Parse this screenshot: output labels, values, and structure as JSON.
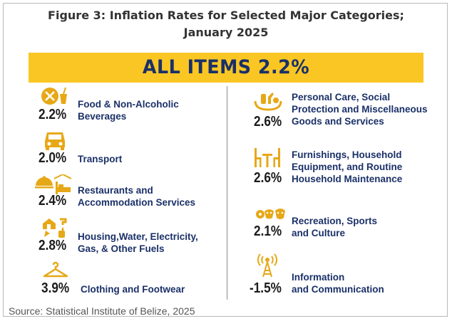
{
  "title_line1": "Figure 3: Inflation Rates for Selected Major Categories;",
  "title_line2": "January 2025",
  "banner": "ALL ITEMS 2.2%",
  "source": "Source: Statistical Institute of Belize, 2025",
  "colors": {
    "banner": "#f9c623",
    "navy": "#1a3068",
    "icon": "#e6a817"
  },
  "chart_data": {
    "type": "table",
    "title": "Figure 3: Inflation Rates for Selected Major Categories; January 2025",
    "headline": {
      "label": "ALL ITEMS",
      "value": 2.2,
      "unit": "%"
    },
    "categories": [
      {
        "label": "Food & Non-Alcoholic\nBeverages",
        "value": "2.2%",
        "icon": "food-icon"
      },
      {
        "label": "Transport",
        "value": "2.0%",
        "icon": "car-icon"
      },
      {
        "label": "Restaurants and\nAccommodation Services",
        "value": "2.4%",
        "icon": "restaurant-bed-icon"
      },
      {
        "label": "Housing,Water, Electricity,\nGas, & Other Fuels",
        "value": "2.8%",
        "icon": "house-utilities-icon"
      },
      {
        "label": "Clothing and Footwear",
        "value": "3.9%",
        "icon": "hanger-icon"
      },
      {
        "label": "Personal Care, Social\nProtection and Miscellaneous\nGoods and Services",
        "value": "2.6%",
        "icon": "personal-care-icon"
      },
      {
        "label": "Furnishings, Household\nEquipment, and Routine\nHousehold Maintenance",
        "value": "2.6%",
        "icon": "table-chairs-icon"
      },
      {
        "label": "Recreation, Sports\nand Culture",
        "value": "2.1%",
        "icon": "recreation-icon"
      },
      {
        "label": "Information\nand Communication",
        "value": "-1.5%",
        "icon": "antenna-icon"
      }
    ]
  }
}
